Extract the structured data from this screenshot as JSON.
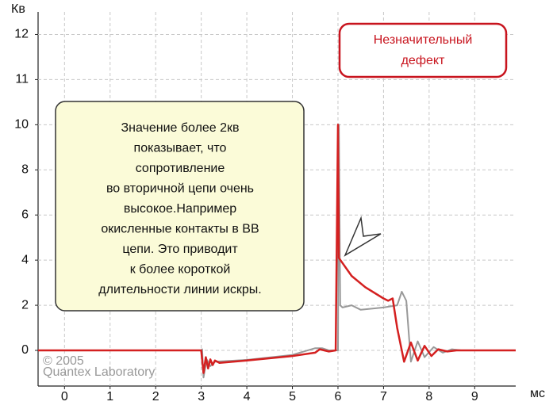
{
  "chart_data": {
    "type": "line",
    "ylabel": "Кв",
    "xlabel": "мс",
    "xlim": [
      -0.58,
      9.9
    ],
    "xticks": [
      0,
      1,
      2,
      3,
      4,
      5,
      6,
      7,
      8,
      9
    ],
    "ylim": [
      -1.58,
      12.5
    ],
    "yticks": [
      0,
      2,
      4,
      6,
      8,
      10,
      11,
      12
    ],
    "grid": true,
    "series": [
      {
        "name": null,
        "color": "#999999",
        "x": [
          -0.58,
          3.0,
          3.02,
          3.05,
          3.12,
          3.2,
          3.3,
          4.0,
          5.0,
          5.5,
          5.65,
          5.8,
          6.0,
          6.02,
          6.05,
          6.1,
          6.3,
          6.5,
          7.0,
          7.3,
          7.4,
          7.5,
          7.6,
          7.75,
          7.9,
          8.1,
          8.3,
          8.5,
          8.7,
          9.9
        ],
        "values": [
          0,
          0,
          0.05,
          -1.2,
          -0.4,
          -0.7,
          -0.5,
          -0.42,
          -0.2,
          0.1,
          0.1,
          0,
          0,
          10,
          2.0,
          1.9,
          2.0,
          1.8,
          1.9,
          2.0,
          2.6,
          2.2,
          -0.5,
          0.4,
          -0.3,
          0.15,
          -0.1,
          0.05,
          0,
          0
        ]
      },
      {
        "name": null,
        "color": "#d42020",
        "x": [
          -0.58,
          3.0,
          3.05,
          3.1,
          3.15,
          3.2,
          3.25,
          3.3,
          3.4,
          4.0,
          5.0,
          5.5,
          5.6,
          5.7,
          5.8,
          5.95,
          6.0,
          6.02,
          6.3,
          6.6,
          7.0,
          7.1,
          7.2,
          7.3,
          7.45,
          7.6,
          7.75,
          7.9,
          8.05,
          8.2,
          8.4,
          8.6,
          9.9
        ],
        "values": [
          0,
          0,
          -1.0,
          -0.3,
          -0.8,
          -0.4,
          -0.65,
          -0.45,
          -0.55,
          -0.45,
          -0.25,
          -0.1,
          0.05,
          0.0,
          -0.05,
          0.0,
          10,
          4.1,
          3.3,
          2.8,
          2.3,
          2.2,
          2.3,
          1.0,
          -0.5,
          0.35,
          -0.45,
          0.2,
          -0.25,
          0.05,
          -0.05,
          0,
          0
        ]
      }
    ],
    "annotations": {
      "note": [
        "Значение более 2кв",
        "показывает, что",
        "сопротивление",
        "во вторичной цепи очень",
        "высокое.Например",
        "окисленные контакты в ВВ",
        "цепи. Это приводит",
        "к более короткой",
        "длительности линии искры."
      ],
      "badge": [
        "Незначительный",
        "дефект"
      ],
      "copyright": [
        "© 2005",
        "Quantex Laboratory"
      ]
    }
  }
}
